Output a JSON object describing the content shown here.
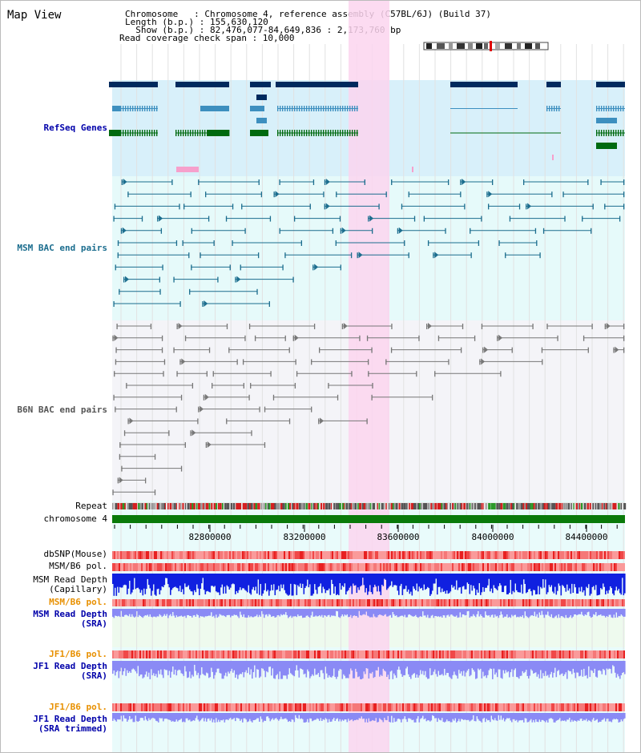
{
  "header": {
    "title": "Map View",
    "info_lines": [
      "Chromosome   : Chromosome 4, reference assembly (C57BL/6J) (Build 37)",
      "Length (b.p.) : 155,630,120",
      "  Show (b.p.) : 82,476,077-84,649,836 : 2,173,760 bp",
      "Read coverage check span : 10,000"
    ]
  },
  "colors": {
    "refseq_bg": "#d8f0fa",
    "bac_bg": "#e6fafa",
    "b6n_bg": "#f4f4f8",
    "highlight": "#fbd5ef",
    "msm_bac": "#1b6d8e",
    "b6n_bac": "#777777",
    "refseq_dark": "#002a5e",
    "refseq_mid": "#3d8fbf",
    "refseq_green": "#006a10",
    "chromosome_bar": "#0a7a0a",
    "depth_capillary": "#1020e0",
    "depth_sra": "#8a8af5",
    "polymorphism": "#f06a6a"
  },
  "tracks": {
    "refseq": {
      "label": "RefSeq Genes",
      "color": "#0000aa"
    },
    "msm_bac": {
      "label": "MSM BAC end pairs",
      "color": "#1b6d8e"
    },
    "b6n_bac": {
      "label": "B6N BAC end pairs",
      "color": "#555555"
    },
    "repeat": {
      "label": "Repeat",
      "color": "#000000"
    },
    "chromosome": {
      "label": "chromosome 4",
      "color": "#000000"
    },
    "dbsnp": {
      "label": "dbSNP(Mouse)",
      "color": "#000000"
    },
    "msm_b6_pol": {
      "label": "MSM/B6 pol.",
      "color": "#000000"
    },
    "msm_depth_cap": {
      "label": "MSM Read Depth\n(Capillary)",
      "color": "#000000"
    },
    "msm_b6_pol_sra": {
      "label": "MSM/B6 pol.",
      "color": "#e89000"
    },
    "msm_depth_sra": {
      "label": "MSM Read Depth\n(SRA)",
      "color": "#0000aa"
    },
    "jf1_b6_pol": {
      "label": "JF1/B6 pol.",
      "color": "#e89000"
    },
    "jf1_depth_sra": {
      "label": "JF1 Read Depth\n(SRA)",
      "color": "#0000aa"
    },
    "jf1_b6_pol_trim": {
      "label": "JF1/B6 pol.",
      "color": "#e89000"
    },
    "jf1_depth_trim": {
      "label": "JF1 Read Depth\n(SRA trimmed)",
      "color": "#0000aa"
    }
  },
  "axis": {
    "ticks": [
      "82800000",
      "83200000",
      "83600000",
      "84000000",
      "84400000"
    ]
  }
}
